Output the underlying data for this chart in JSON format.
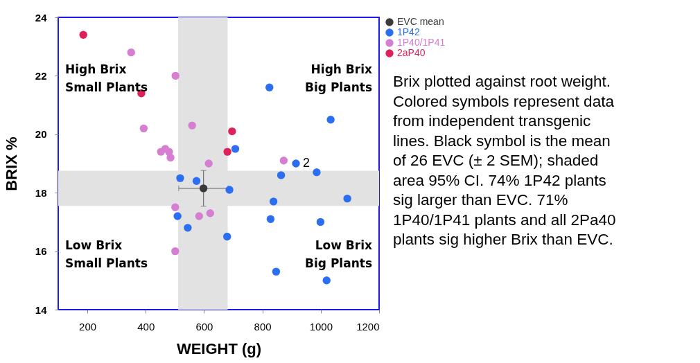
{
  "chart_data": {
    "type": "scatter",
    "xlabel": "WEIGHT (g)",
    "ylabel": "BRIX %",
    "xlim": [
      100,
      1200
    ],
    "xticks": [
      200,
      400,
      600,
      800,
      1000,
      1200
    ],
    "ylim": [
      14,
      24
    ],
    "yticks": [
      14,
      16,
      18,
      20,
      22,
      24
    ],
    "grid": false,
    "legend": "right",
    "marker": "circle",
    "series": [
      {
        "name": "EVC mean",
        "color": "#3a3a3a",
        "x": [
          598
        ],
        "values": [
          18.15
        ],
        "errors": [
          0.61
        ],
        "xerrors": [
          85
        ]
      },
      {
        "name": "1P42",
        "color": "#2b6ff0",
        "x": [
          824,
          1034,
          707,
          915,
          986,
          864,
          687,
          838,
          1091,
          828,
          999,
          679,
          847,
          1020,
          518,
          574,
          509,
          544
        ],
        "values": [
          21.6,
          20.5,
          19.5,
          19.0,
          18.7,
          18.6,
          18.1,
          17.7,
          17.8,
          17.1,
          17.0,
          16.5,
          15.3,
          15.0,
          18.5,
          18.4,
          17.2,
          16.8
        ]
      },
      {
        "name": "1P40/1P41",
        "color": "#d67fd2",
        "x": [
          350,
          502,
          393,
          559,
          452,
          467,
          480,
          485,
          616,
          873,
          501,
          583,
          621,
          501
        ],
        "values": [
          22.8,
          22.0,
          20.2,
          20.3,
          19.4,
          19.5,
          19.4,
          19.2,
          19.0,
          19.1,
          17.5,
          17.2,
          17.3,
          16.0
        ]
      },
      {
        "name": "2aP40",
        "color": "#e0205a",
        "x": [
          186,
          385,
          696,
          680
        ],
        "values": [
          23.4,
          21.4,
          20.1,
          19.4
        ]
      }
    ],
    "bands": [
      {
        "axis": "x",
        "from": 511,
        "to": 681,
        "color": "#e2e2e2"
      },
      {
        "axis": "y",
        "from": 17.55,
        "to": 18.75,
        "color": "#e2e2e2"
      }
    ],
    "annotations": [
      {
        "text": "2",
        "x": 915,
        "y": 19.0
      },
      "High Brix\nSmall Plants",
      "High Brix\nBig Plants",
      "Low Brix\nSmall Plants",
      "Low Brix\nBig Plants",
      "Brix plotted against root weight.\nColored symbols represent data\nfrom independent transgenic\nlines. Black symbol is the mean\nof 26 EVC (± 2 SEM); shaded\narea 95% CI. 74% 1P42 plants\nsig larger than EVC. 71%\n1P40/1P41 plants and all 2Pa40\nplants sig higher Brix than EVC."
    ]
  }
}
